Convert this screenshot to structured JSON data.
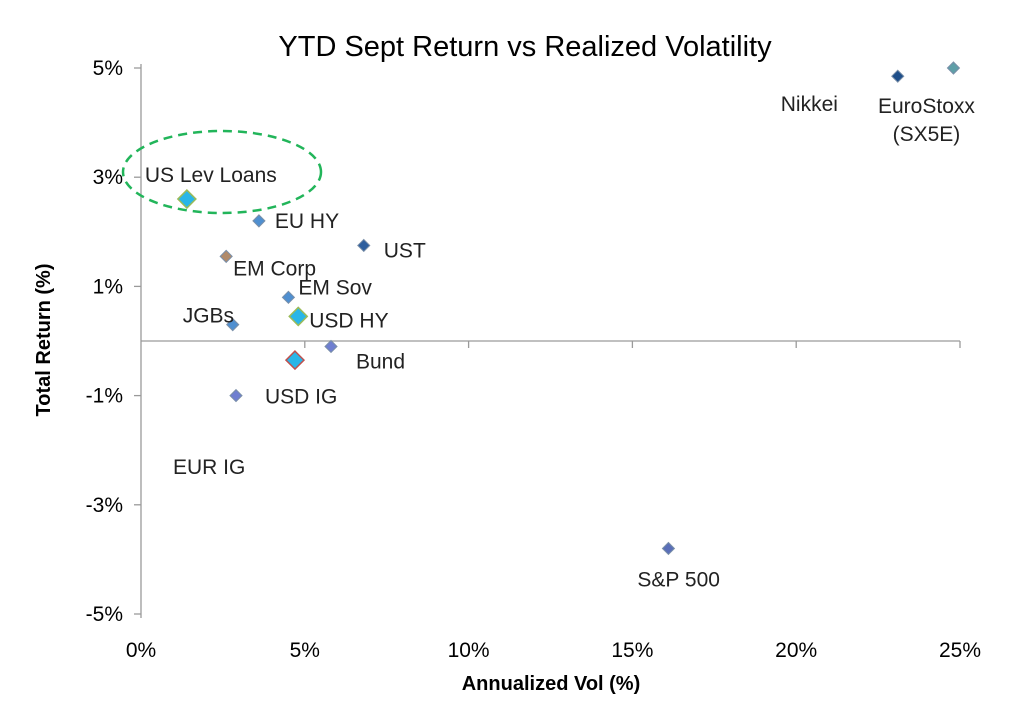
{
  "chart_data": {
    "type": "scatter",
    "title": "YTD Sept Return vs Realized Volatility",
    "xlabel": "Annualized Vol (%)",
    "ylabel": "Total Return (%)",
    "xlim": [
      0,
      25
    ],
    "ylim": [
      -5,
      5
    ],
    "x_ticks": [
      0,
      5,
      10,
      15,
      20,
      25
    ],
    "x_tick_labels": [
      "0%",
      "5%",
      "10%",
      "15%",
      "20%",
      "25%"
    ],
    "y_ticks": [
      5,
      3,
      1,
      -1,
      -3,
      -5
    ],
    "y_tick_labels": [
      "5%",
      "3%",
      "1%",
      "-1%",
      "-3%",
      "-5%"
    ],
    "grid": false,
    "points": [
      {
        "label": "US Lev Loans",
        "x": 1.4,
        "y": 2.6,
        "color": "#29b6e8",
        "highlighted": true
      },
      {
        "label": "EU HY",
        "x": 3.6,
        "y": 2.2,
        "color": "#4f8fd0"
      },
      {
        "label": "UST",
        "x": 6.8,
        "y": 1.75,
        "color": "#2f5f9e"
      },
      {
        "label": "EM Corp",
        "x": 2.6,
        "y": 1.55,
        "color": "#b08a6a"
      },
      {
        "label": "EM Sov",
        "x": 4.5,
        "y": 0.8,
        "color": "#4f8fd0"
      },
      {
        "label": "JGBs",
        "x": 2.8,
        "y": 0.3,
        "color": "#4f8fd0"
      },
      {
        "label": "USD HY",
        "x": 4.8,
        "y": 0.45,
        "color": "#29b6e8"
      },
      {
        "label": "Bund",
        "x": 5.8,
        "y": -0.1,
        "color": "#6f7fd0"
      },
      {
        "label": "",
        "x": 4.7,
        "y": -0.35,
        "color": "#29b6e8"
      },
      {
        "label": "USD IG",
        "x": 2.9,
        "y": -1.0,
        "color": "#6f7fd0"
      },
      {
        "label": "S&P 500",
        "x": 16.1,
        "y": -3.8,
        "color": "#5a6fb8"
      },
      {
        "label": "Nikkei",
        "x": 23.1,
        "y": 4.85,
        "color": "#1f4f8a"
      },
      {
        "label": "EuroStoxx (SX5E)",
        "x": 24.8,
        "y": 5.0,
        "color": "#5f9fa8"
      }
    ],
    "annotations": [
      {
        "text": "EUR IG"
      }
    ],
    "colors": {
      "highlight_ellipse": "#22b55a",
      "axis": "#9a9a9a"
    }
  }
}
